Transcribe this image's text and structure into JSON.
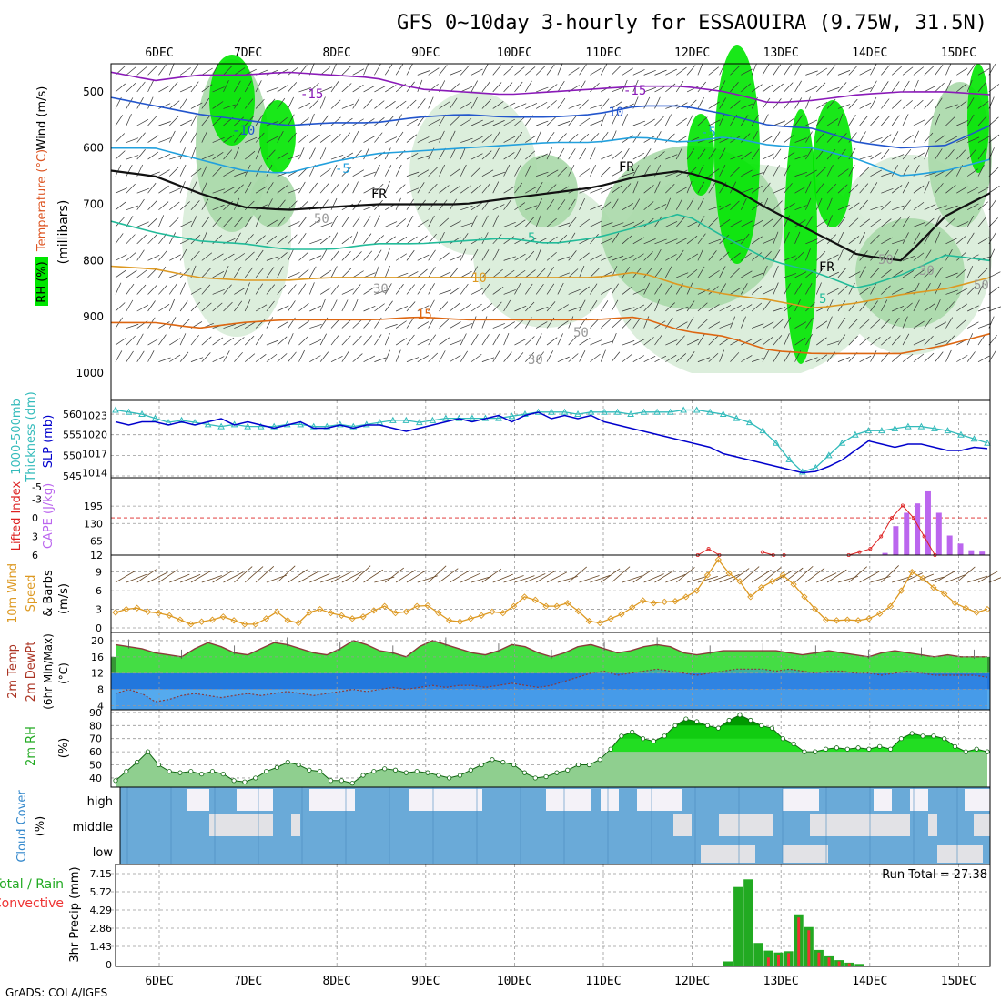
{
  "title": "GFS 0~10day 3-hourly for ESSAOUIRA (9.75W, 31.5N)",
  "credit": "GrADS: COLA/IGES",
  "colors": {
    "rh_green": "#00e600",
    "rh_mid": "#a8d8a8",
    "rh_light": "#d8ecd8",
    "slp": "#0000cc",
    "thickness": "#33bbbb",
    "cape": "#bb66ee",
    "lifted": "#dd2222",
    "wind": "#dd9922",
    "barb": "#664422",
    "temp": "#2da82d",
    "dew": "#3388ee",
    "rh2m": "#22dd22",
    "cloud": "#6aaad8",
    "precip_total": "#22aa22",
    "precip_conv": "#ee3333"
  },
  "chart_data": [
    {
      "type": "heatmap",
      "name": "vertical-profile",
      "ylabel_parts": [
        "RH (%)",
        "Temperature",
        "(°C)",
        "Wind (m/s)",
        "(millibars)"
      ],
      "yticks": [
        500,
        600,
        700,
        800,
        900,
        1000
      ],
      "x_ticks": [
        "6DEC",
        "7DEC",
        "8DEC",
        "9DEC",
        "10DEC",
        "11DEC",
        "12DEC",
        "13DEC",
        "14DEC",
        "15DEC"
      ],
      "contour_labels": [
        "-15",
        "-15",
        "-10",
        "-10",
        "-5",
        "-5",
        "FR",
        "FR",
        "FR",
        "5",
        "5",
        "10",
        "15",
        "50",
        "50",
        "50",
        "30",
        "30",
        "30",
        "50"
      ],
      "isotherms": [
        {
          "label": "-15",
          "level": [
            465,
            480,
            470,
            470,
            465,
            470,
            475,
            495,
            500,
            505,
            500,
            495,
            490,
            490,
            500,
            520,
            515,
            505,
            500,
            500,
            505
          ]
        },
        {
          "label": "-10",
          "level": [
            510,
            525,
            540,
            550,
            560,
            555,
            555,
            545,
            540,
            545,
            545,
            540,
            525,
            525,
            540,
            560,
            565,
            590,
            600,
            595,
            560
          ]
        },
        {
          "label": "-5",
          "level": [
            600,
            600,
            620,
            640,
            645,
            625,
            610,
            605,
            600,
            595,
            590,
            590,
            580,
            590,
            580,
            595,
            600,
            620,
            650,
            640,
            620
          ]
        },
        {
          "label": "FR",
          "level": [
            640,
            650,
            680,
            705,
            710,
            705,
            700,
            700,
            700,
            690,
            680,
            670,
            650,
            640,
            665,
            710,
            750,
            790,
            800,
            720,
            680
          ]
        },
        {
          "label": "5",
          "level": [
            730,
            750,
            765,
            770,
            780,
            780,
            770,
            770,
            765,
            760,
            770,
            760,
            740,
            715,
            760,
            800,
            820,
            850,
            825,
            790,
            800
          ]
        },
        {
          "label": "10",
          "level": [
            810,
            815,
            830,
            835,
            835,
            830,
            830,
            830,
            830,
            830,
            830,
            830,
            820,
            845,
            860,
            870,
            885,
            875,
            860,
            850,
            830
          ]
        },
        {
          "label": "15",
          "level": [
            910,
            910,
            920,
            910,
            905,
            905,
            905,
            900,
            905,
            905,
            905,
            905,
            900,
            925,
            935,
            960,
            965,
            965,
            965,
            950,
            930
          ]
        }
      ]
    },
    {
      "type": "line",
      "name": "thickness-slp",
      "ylabel": "1000-500mb Thickness (dm) / SLP (mb)",
      "left_ticks": [
        545,
        550,
        555,
        560
      ],
      "right_ticks": [
        1014,
        1017,
        1020,
        1023
      ],
      "ylim": [
        545,
        562
      ],
      "series": [
        {
          "name": "1000-500mb Thickness (dm)",
          "values": [
            561,
            560.5,
            560,
            559,
            558,
            558.5,
            558,
            557.5,
            557,
            557.5,
            557,
            557,
            557,
            557.5,
            557.5,
            557,
            557,
            557.5,
            557,
            557.5,
            558,
            558.5,
            558.5,
            558,
            558.5,
            559,
            559,
            559,
            559,
            559,
            559.5,
            560,
            560.5,
            560.5,
            560.5,
            560,
            560.5,
            560.5,
            560.5,
            560,
            560.5,
            560.5,
            560.5,
            561,
            561,
            560.5,
            560,
            559,
            558,
            556,
            553,
            549,
            546,
            547,
            550,
            553,
            555,
            556,
            556,
            556.5,
            557,
            557,
            556.5,
            556,
            555,
            554,
            553
          ]
        },
        {
          "name": "SLP (mb)",
          "values": [
            1022,
            1021.5,
            1022,
            1022,
            1021.5,
            1022,
            1021.5,
            1022,
            1022.5,
            1021.5,
            1022,
            1021.5,
            1021,
            1021.5,
            1022,
            1021,
            1021,
            1021.5,
            1021,
            1021.5,
            1021.5,
            1021,
            1020.5,
            1021,
            1021.5,
            1022,
            1022.5,
            1022,
            1022.5,
            1023,
            1022,
            1023,
            1023.5,
            1022.5,
            1023,
            1022.5,
            1023,
            1022,
            1021.5,
            1021,
            1020.5,
            1020,
            1019.5,
            1019,
            1018.5,
            1018,
            1017,
            1016.5,
            1016,
            1015.5,
            1015,
            1014.5,
            1014,
            1014.2,
            1015,
            1016,
            1017.5,
            1019,
            1018.5,
            1018,
            1018.5,
            1018.5,
            1018,
            1017.5,
            1017.5,
            1018,
            1017.8
          ]
        }
      ]
    },
    {
      "type": "bar",
      "name": "cape-lifted",
      "ylabel": "Lifted Index / CAPE (J/kg)",
      "cape_ticks": [
        12,
        65,
        130,
        195
      ],
      "li_ticks": [
        -5,
        -3,
        0,
        3,
        6
      ],
      "cape_values": {
        "50": 3,
        "52": 10,
        "53": 20,
        "54": 120,
        "55": 170,
        "56": 205,
        "57": 250,
        "58": 170,
        "59": 85,
        "60": 55,
        "61": 30,
        "62": 25
      },
      "lifted_index": {
        "35": 6,
        "36": 5,
        "37": 6,
        "41": 5.5,
        "42": 6,
        "43": 6,
        "49": 6,
        "50": 5.5,
        "51": 5,
        "52": 3,
        "53": 0,
        "54": -2,
        "55": 0,
        "56": 3,
        "57": 6
      }
    },
    {
      "type": "line",
      "name": "wind-10m",
      "ylabel": "10m Wind Speed (m/s) & Barbs",
      "yticks": [
        0,
        3,
        6,
        9
      ],
      "ylim": [
        0,
        11
      ],
      "values": [
        2.5,
        3,
        3.2,
        2.6,
        2.4,
        2,
        1.3,
        0.6,
        1,
        1.3,
        1.8,
        1.2,
        0.6,
        0.6,
        1.5,
        2.6,
        1.2,
        0.8,
        2.5,
        3,
        2.4,
        2,
        1.5,
        1.8,
        2.8,
        3.5,
        2.4,
        2.6,
        3.5,
        3.6,
        2.4,
        1.2,
        1,
        1.5,
        2,
        2.6,
        2.4,
        3.5,
        5,
        4.5,
        3.5,
        3.5,
        4,
        2.7,
        1.1,
        0.8,
        1.5,
        2.2,
        3.3,
        4.4,
        4,
        4.2,
        4.3,
        5,
        6,
        8.5,
        11,
        8.8,
        7.5,
        5,
        6.5,
        7.5,
        8.5,
        7,
        5,
        3,
        1.3,
        1.2,
        1.3,
        1.2,
        1.5,
        2.3,
        3.5,
        6,
        9,
        8,
        6.5,
        5.5,
        4,
        3.2,
        2.5,
        3
      ]
    },
    {
      "type": "area",
      "name": "temp-dew",
      "ylabel": "2m Temp / 2m DewPt (6hr Min/Max) (°C)",
      "yticks": [
        4,
        8,
        12,
        16,
        20
      ],
      "ylim": [
        3,
        22
      ],
      "series": [
        {
          "name": "2m Temp",
          "values": [
            19,
            18.5,
            18,
            17,
            16.5,
            16,
            18,
            19.5,
            18.5,
            17,
            16.5,
            18,
            19.5,
            19,
            18,
            17,
            16.5,
            18,
            20,
            19,
            17.5,
            17,
            16,
            18.5,
            20,
            19,
            18,
            17,
            16.5,
            17.5,
            19,
            18.5,
            17,
            16,
            17,
            18.5,
            19,
            18,
            17,
            17.5,
            18.5,
            19,
            18.5,
            17,
            16.5,
            17,
            17.5,
            17.5,
            17.5,
            17.5,
            17.5,
            17,
            16.5,
            17,
            17.5,
            17,
            16.5,
            16,
            17,
            17.5,
            17,
            16.5,
            16,
            16.5,
            16,
            16,
            16
          ]
        },
        {
          "name": "2m DewPt",
          "values": [
            7,
            8,
            7,
            5,
            5.5,
            6.5,
            7,
            6.5,
            6,
            6.5,
            7,
            6.5,
            7,
            7.5,
            7,
            6.5,
            7,
            7.5,
            8,
            7.5,
            8,
            8.5,
            8,
            8.5,
            9,
            8.5,
            9,
            9,
            8.5,
            9,
            9.5,
            9,
            8.5,
            9,
            10,
            11,
            12,
            12.5,
            11.5,
            12,
            12.5,
            13,
            12.5,
            12,
            11.5,
            12,
            12.5,
            13,
            13,
            13,
            12.5,
            13,
            12.5,
            12,
            12.5,
            12.5,
            12,
            12,
            11.5,
            12,
            12.5,
            12,
            11.5,
            11.5,
            11.5,
            11.5,
            11
          ]
        }
      ]
    },
    {
      "type": "area",
      "name": "rh-2m",
      "ylabel": "2m RH (%)",
      "yticks": [
        40,
        50,
        60,
        70,
        80,
        90
      ],
      "ylim": [
        33,
        92
      ],
      "values": [
        38,
        45,
        52,
        60,
        50,
        45,
        44,
        45,
        43,
        45,
        43,
        38,
        37,
        40,
        45,
        48,
        52,
        50,
        46,
        45,
        38,
        38,
        36,
        42,
        45,
        47,
        46,
        44,
        45,
        44,
        42,
        40,
        42,
        46,
        50,
        54,
        52,
        50,
        44,
        40,
        41,
        44,
        46,
        50,
        50,
        54,
        62,
        72,
        75,
        70,
        68,
        72,
        80,
        85,
        83,
        80,
        78,
        84,
        88,
        84,
        80,
        78,
        70,
        66,
        60,
        60,
        62,
        63,
        62,
        63,
        62,
        64,
        62,
        70,
        74,
        72,
        72,
        70,
        64,
        60,
        62,
        60
      ]
    },
    {
      "type": "heatmap",
      "name": "cloud-cover",
      "ylabel": "Cloud Cover (%)",
      "levels": [
        "high",
        "middle",
        "low"
      ]
    },
    {
      "type": "bar",
      "name": "precip-3hr",
      "ylabel": "3hr Precip (mm)",
      "legend_labels": [
        "Total / Rain",
        "Convective"
      ],
      "yticks": [
        0,
        1.43,
        2.86,
        4.29,
        5.72,
        7.15
      ],
      "run_total_label": "Run Total = 27.38",
      "total": {
        "48": 0.25,
        "49": 6.1,
        "50": 6.7,
        "51": 1.7,
        "52": 1.1,
        "53": 0.95,
        "54": 1.05,
        "55": 3.95,
        "56": 2.95,
        "57": 1.15,
        "58": 0.65,
        "59": 0.35,
        "60": 0.15,
        "61": 0.05
      },
      "convective": {
        "52": 0.55,
        "53": 0.75,
        "54": 0.9,
        "55": 3.7,
        "56": 2.7,
        "57": 0.95,
        "58": 0.55,
        "59": 0.25,
        "60": 0.1
      }
    }
  ]
}
